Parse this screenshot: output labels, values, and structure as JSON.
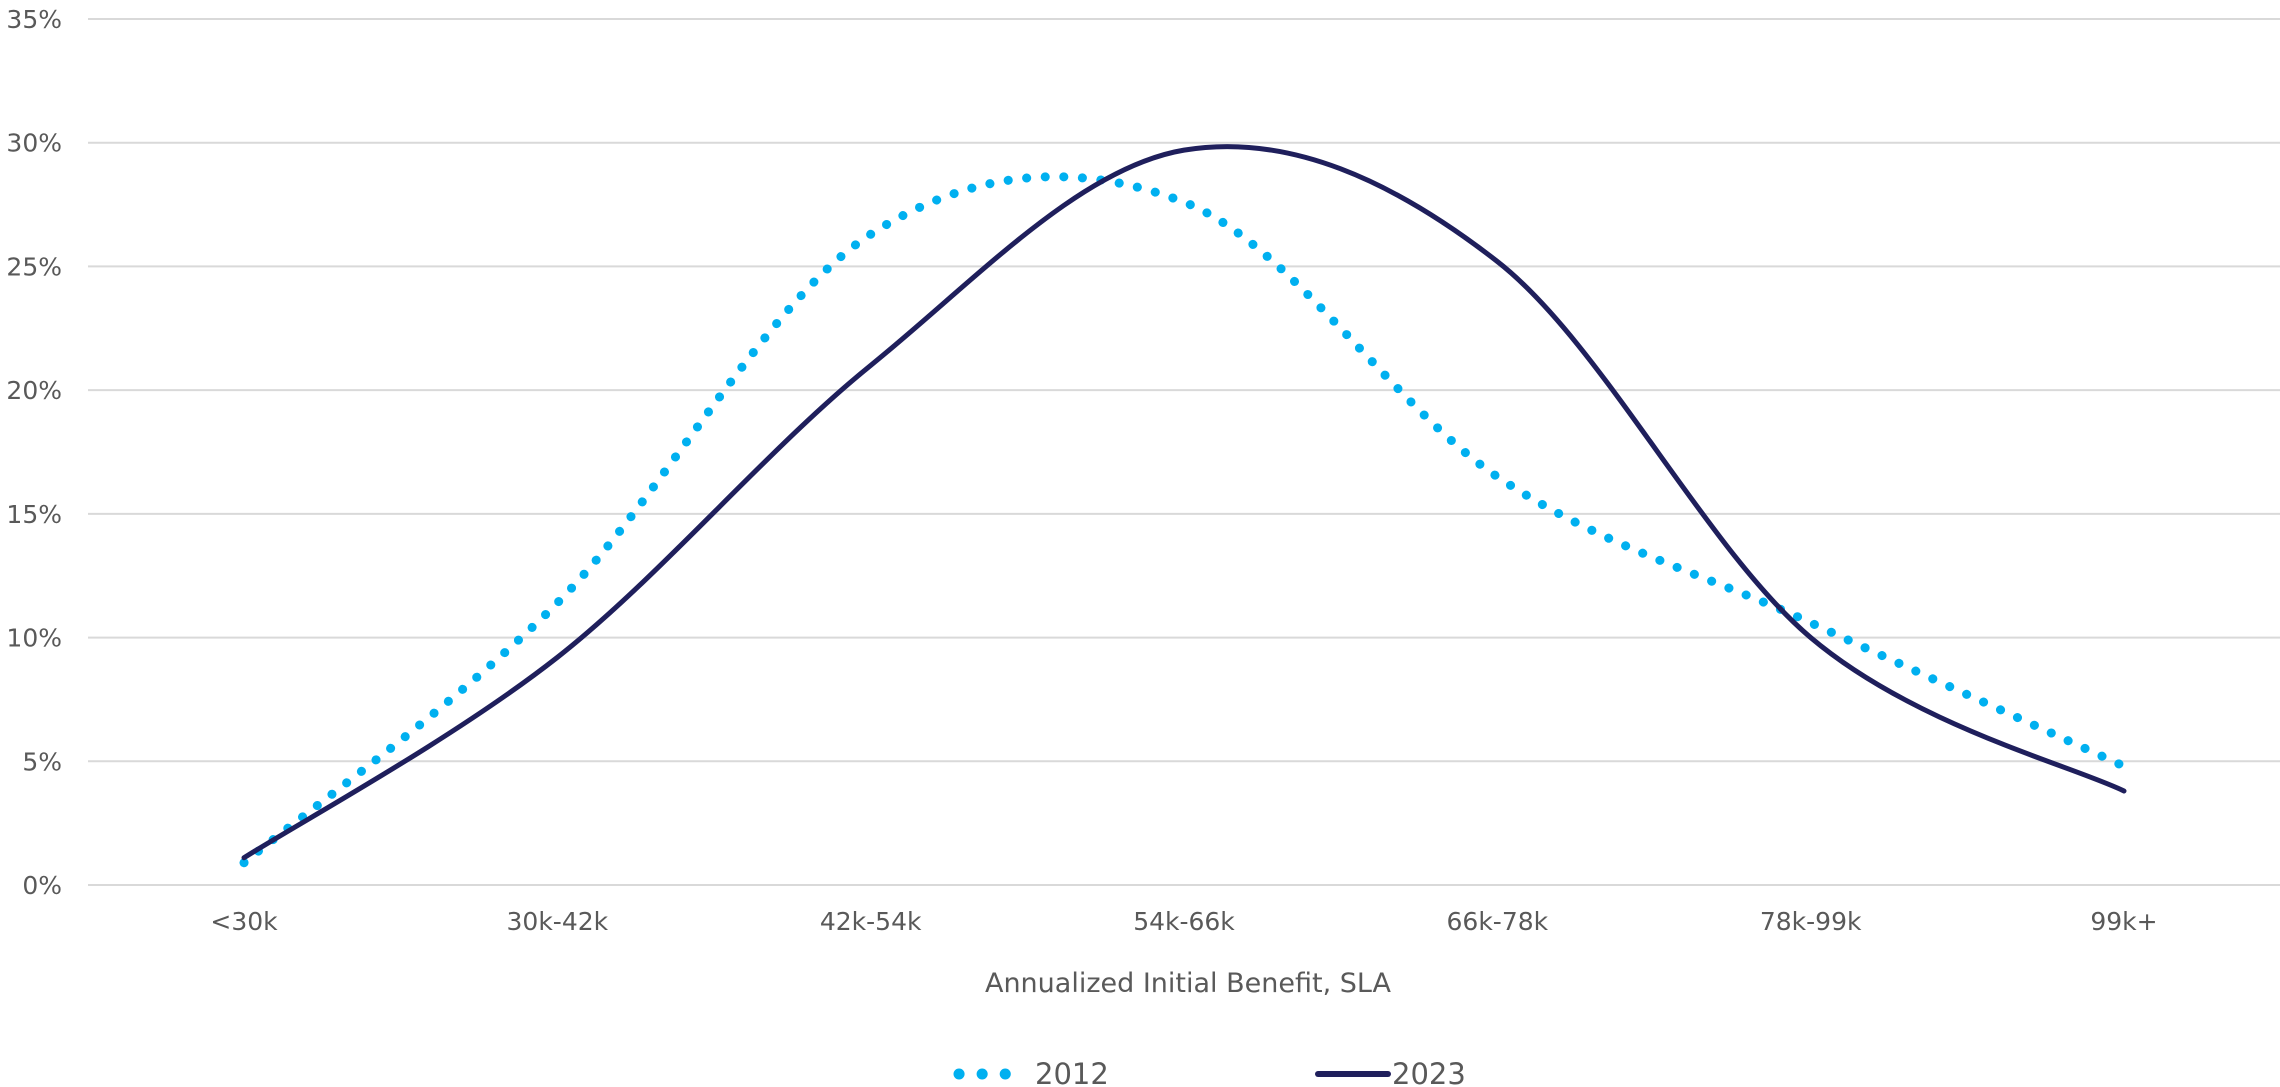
{
  "chart_data": {
    "type": "line",
    "title": "",
    "xlabel": "Annualized Initial Benefit, SLA",
    "ylabel": "",
    "categories": [
      "<30k",
      "30k-42k",
      "42k-54k",
      "54k-66k",
      "66k-78k",
      "78k-99k",
      "99k+"
    ],
    "ylim": [
      0,
      0.35
    ],
    "yticks": [
      "0%",
      "5%",
      "10%",
      "15%",
      "20%",
      "25%",
      "30%",
      "35%"
    ],
    "grid": true,
    "legend_position": "bottom",
    "series": [
      {
        "name": "2012",
        "style": "dotted",
        "color": "#00b0f0",
        "values": [
          0.009,
          0.114,
          0.263,
          0.276,
          0.165,
          0.106,
          0.048
        ]
      },
      {
        "name": "2023",
        "style": "solid",
        "color": "#1f1f5c",
        "values": [
          0.011,
          0.092,
          0.21,
          0.297,
          0.252,
          0.1,
          0.038
        ]
      }
    ]
  }
}
